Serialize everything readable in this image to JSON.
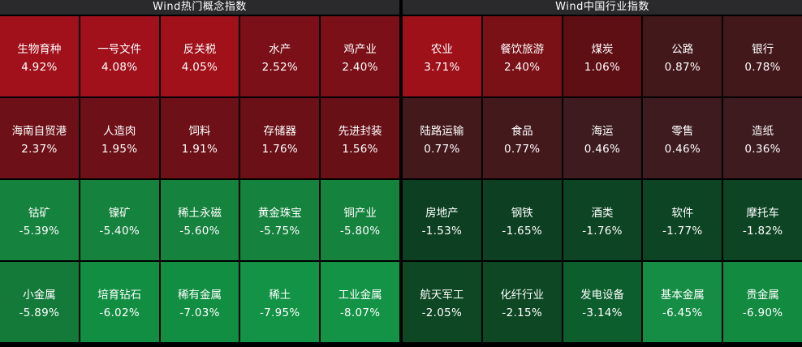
{
  "colors": {
    "background": "#000000",
    "header_bg": "#2a2a2c",
    "header_text": "#ffffff",
    "cell_text": "#ffffff",
    "gain_strong": "#a1111b",
    "gain_weak": "#3d1b1e",
    "loss_strong": "#128e42",
    "loss_weak": "#0d4022"
  },
  "chart_data": [
    {
      "type": "heatmap",
      "title": "Wind热门概念指数",
      "legend_position": "none",
      "rows": [
        [
          {
            "label": "生物育种",
            "value": 4.92,
            "display": "4.92%",
            "color": "#a1111b"
          },
          {
            "label": "一号文件",
            "value": 4.08,
            "display": "4.08%",
            "color": "#a1111b"
          },
          {
            "label": "反关税",
            "value": 4.05,
            "display": "4.05%",
            "color": "#a0111a"
          },
          {
            "label": "水产",
            "value": 2.52,
            "display": "2.52%",
            "color": "#7b1018"
          },
          {
            "label": "鸡产业",
            "value": 2.4,
            "display": "2.40%",
            "color": "#7b1018"
          }
        ],
        [
          {
            "label": "海南自贸港",
            "value": 2.37,
            "display": "2.37%",
            "color": "#6d1017"
          },
          {
            "label": "人造肉",
            "value": 1.95,
            "display": "1.95%",
            "color": "#6d1017"
          },
          {
            "label": "饲料",
            "value": 1.91,
            "display": "1.91%",
            "color": "#6d1017"
          },
          {
            "label": "存储器",
            "value": 1.76,
            "display": "1.76%",
            "color": "#6a1016"
          },
          {
            "label": "先进封装",
            "value": 1.56,
            "display": "1.56%",
            "color": "#671016"
          }
        ],
        [
          {
            "label": "钴矿",
            "value": -5.39,
            "display": "-5.39%",
            "color": "#15823d"
          },
          {
            "label": "镍矿",
            "value": -5.4,
            "display": "-5.40%",
            "color": "#15823d"
          },
          {
            "label": "稀土永磁",
            "value": -5.6,
            "display": "-5.60%",
            "color": "#15823d"
          },
          {
            "label": "黄金珠宝",
            "value": -5.75,
            "display": "-5.75%",
            "color": "#15823d"
          },
          {
            "label": "铜产业",
            "value": -5.8,
            "display": "-5.80%",
            "color": "#15823d"
          }
        ],
        [
          {
            "label": "小金属",
            "value": -5.89,
            "display": "-5.89%",
            "color": "#147a39"
          },
          {
            "label": "培育钻石",
            "value": -6.02,
            "display": "-6.02%",
            "color": "#128e42"
          },
          {
            "label": "稀有金属",
            "value": -7.03,
            "display": "-7.03%",
            "color": "#128e42"
          },
          {
            "label": "稀土",
            "value": -7.95,
            "display": "-7.95%",
            "color": "#129345"
          },
          {
            "label": "工业金属",
            "value": -8.07,
            "display": "-8.07%",
            "color": "#129345"
          }
        ]
      ]
    },
    {
      "type": "heatmap",
      "title": "Wind中国行业指数",
      "legend_position": "none",
      "rows": [
        [
          {
            "label": "农业",
            "value": 3.71,
            "display": "3.71%",
            "color": "#9e1119"
          },
          {
            "label": "餐饮旅游",
            "value": 2.4,
            "display": "2.40%",
            "color": "#7a1116"
          },
          {
            "label": "煤炭",
            "value": 1.06,
            "display": "1.06%",
            "color": "#5e0f14"
          },
          {
            "label": "公路",
            "value": 0.87,
            "display": "0.87%",
            "color": "#42181b"
          },
          {
            "label": "银行",
            "value": 0.78,
            "display": "0.78%",
            "color": "#42181b"
          }
        ],
        [
          {
            "label": "陆路运输",
            "value": 0.77,
            "display": "0.77%",
            "color": "#43191c"
          },
          {
            "label": "食品",
            "value": 0.77,
            "display": "0.77%",
            "color": "#43191c"
          },
          {
            "label": "海运",
            "value": 0.46,
            "display": "0.46%",
            "color": "#3d1b1e"
          },
          {
            "label": "零售",
            "value": 0.46,
            "display": "0.46%",
            "color": "#3d1b1e"
          },
          {
            "label": "造纸",
            "value": 0.36,
            "display": "0.36%",
            "color": "#3d1b1e"
          }
        ],
        [
          {
            "label": "房地产",
            "value": -1.53,
            "display": "-1.53%",
            "color": "#0d4022"
          },
          {
            "label": "钢铁",
            "value": -1.65,
            "display": "-1.65%",
            "color": "#0d4022"
          },
          {
            "label": "酒类",
            "value": -1.76,
            "display": "-1.76%",
            "color": "#0d4423"
          },
          {
            "label": "软件",
            "value": -1.77,
            "display": "-1.77%",
            "color": "#0d4423"
          },
          {
            "label": "摩托车",
            "value": -1.82,
            "display": "-1.82%",
            "color": "#0d4423"
          }
        ],
        [
          {
            "label": "航天军工",
            "value": -2.05,
            "display": "-2.05%",
            "color": "#0d4724"
          },
          {
            "label": "化纤行业",
            "value": -2.15,
            "display": "-2.15%",
            "color": "#0d4724"
          },
          {
            "label": "发电设备",
            "value": -3.14,
            "display": "-3.14%",
            "color": "#0c5e2d"
          },
          {
            "label": "基本金属",
            "value": -6.45,
            "display": "-6.45%",
            "color": "#158d44"
          },
          {
            "label": "贵金属",
            "value": -6.9,
            "display": "-6.90%",
            "color": "#128a40"
          }
        ]
      ]
    }
  ]
}
